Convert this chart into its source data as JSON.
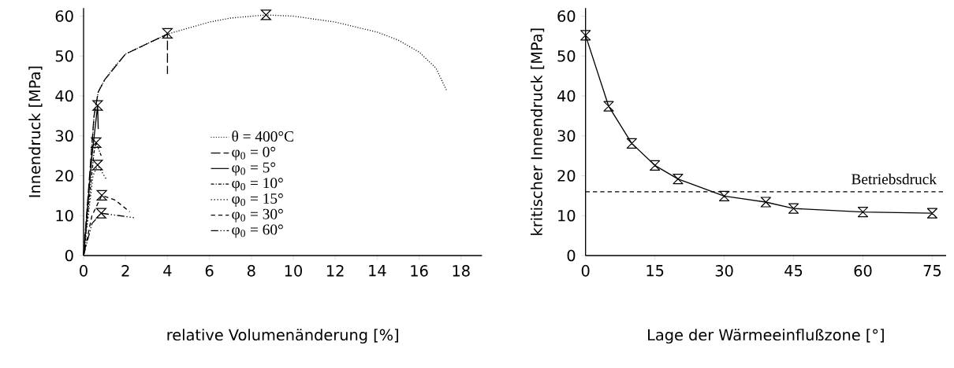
{
  "chart_data": [
    {
      "type": "line",
      "xlabel": "relative Volumenänderung  [%]",
      "ylabel": "Innendruck [MPa]",
      "xlim": [
        0,
        19
      ],
      "ylim": [
        0,
        62
      ],
      "xticks": [
        0,
        2,
        4,
        6,
        8,
        10,
        12,
        14,
        16,
        18
      ],
      "yticks": [
        0,
        10,
        20,
        30,
        40,
        50,
        60
      ],
      "legend": "center",
      "series": [
        {
          "name": "θ = 400°C",
          "color": "#000000",
          "line_style": "dotted",
          "x": [
            0,
            0.3,
            0.5,
            0.7,
            1,
            1.5,
            2,
            3,
            4,
            5,
            6,
            7,
            8.7,
            10,
            12,
            14,
            15,
            16,
            16.8,
            17.3
          ],
          "values": [
            0,
            20,
            35,
            41,
            44,
            47.5,
            50.5,
            53,
            55.5,
            57,
            58.5,
            59.5,
            60.3,
            60,
            58.5,
            56,
            54,
            51,
            47,
            41.5
          ]
        },
        {
          "name": "φ$_{0}$ = 0°",
          "color": "#000000",
          "line_style": "longdashed",
          "x": [
            0,
            0.5,
            0.7,
            1,
            2,
            3,
            4,
            4
          ],
          "values": [
            0,
            35,
            41,
            44,
            50.5,
            53,
            55.5,
            45.5
          ]
        },
        {
          "name": "φ$_{0}$ = 5°",
          "color": "#000000",
          "line_style": "solid",
          "x": [
            0,
            0.4,
            0.67,
            0.7
          ],
          "values": [
            0,
            25,
            37.6,
            31.7
          ]
        },
        {
          "name": "φ$_{0}$ = 10°",
          "color": "#000000",
          "line_style": "dashdot",
          "x": [
            0,
            0.5,
            0.6,
            0.84
          ],
          "values": [
            0,
            26,
            28.3,
            25
          ]
        },
        {
          "name": "φ$_{0}$ = 15°",
          "color": "#000000",
          "line_style": "sparsedotted",
          "x": [
            0,
            0.45,
            0.67,
            1.1
          ],
          "values": [
            0,
            20,
            22.7,
            19
          ]
        },
        {
          "name": "φ$_{0}$ = 30°",
          "color": "#000000",
          "line_style": "dashed",
          "x": [
            0,
            0.4,
            0.87,
            1.5,
            2.2
          ],
          "values": [
            0,
            10,
            15.1,
            13.9,
            11
          ]
        },
        {
          "name": "φ$_{0}$ = 60°",
          "color": "#000000",
          "line_style": "dashdotdot",
          "x": [
            0,
            0.4,
            0.84,
            1.7,
            2.4
          ],
          "values": [
            0,
            8,
            10.6,
            10,
            9.5
          ]
        },
        {
          "type": "scatter",
          "color": "#000000",
          "marker": "diamond",
          "x": [
            4,
            8.7,
            0.67,
            0.6,
            0.67,
            0.87,
            0.84
          ],
          "values": [
            55.7,
            60.3,
            37.6,
            28.3,
            22.7,
            15.1,
            10.6
          ]
        }
      ]
    },
    {
      "type": "line",
      "xlabel": "Lage der Wärmeeinflußzone  [°]",
      "ylabel": "kritischer Innendruck [MPa]",
      "xlim": [
        0,
        78
      ],
      "ylim": [
        0,
        62
      ],
      "xticks": [
        0,
        15,
        30,
        45,
        60,
        75
      ],
      "yticks": [
        0,
        10,
        20,
        30,
        40,
        50,
        60
      ],
      "ref_lines": [
        {
          "axis": "y",
          "value": 16,
          "label": "Betriebsdruck",
          "line_style": "dashed"
        }
      ],
      "series": [
        {
          "color": "#000000",
          "line_style": "solid",
          "marker": "diamond",
          "x": [
            0,
            5,
            10,
            15,
            20,
            30,
            39,
            45,
            60,
            75
          ],
          "values": [
            55.2,
            37.4,
            28.1,
            22.6,
            19.2,
            14.9,
            13.4,
            11.8,
            10.9,
            10.6
          ]
        }
      ]
    }
  ]
}
